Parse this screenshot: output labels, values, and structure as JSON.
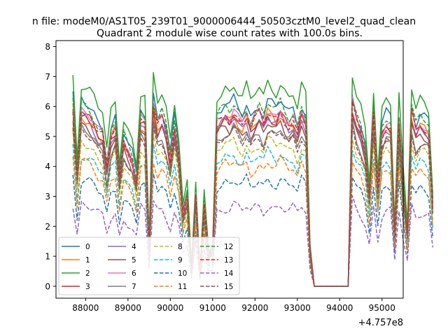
{
  "figure": {
    "suptitle": "n file: modeM0/AS1T05_239T01_9000006444_50503cztM0_level2_quad_clean",
    "offset_label": "+4.757e8"
  },
  "chart_data": {
    "type": "line",
    "title": "Quadrant 2 module wise count rates with 100.0s bins.",
    "xlabel": "",
    "ylabel": "",
    "xlim": [
      87300,
      95500
    ],
    "ylim": [
      -0.4,
      8.2
    ],
    "x_ticks": [
      88000,
      89000,
      90000,
      91000,
      92000,
      93000,
      94000,
      95000
    ],
    "x_tick_labels": [
      "88000",
      "89000",
      "90000",
      "91000",
      "92000",
      "93000",
      "94000",
      "95000"
    ],
    "y_ticks": [
      0,
      1,
      2,
      3,
      4,
      5,
      6,
      7,
      8
    ],
    "y_tick_labels": [
      "0",
      "1",
      "2",
      "3",
      "4",
      "5",
      "6",
      "7",
      "8"
    ],
    "grid": false,
    "legend_placement": "lower-left",
    "x_start": 87700,
    "x_step": 100,
    "y_noise_amplitude": 0.25,
    "template_profile": [
      1.0,
      0.62,
      0.97,
      0.95,
      0.93,
      0.9,
      0.85,
      0.83,
      0.65,
      0.83,
      0.88,
      0.6,
      0.8,
      0.75,
      0.7,
      0.58,
      0.92,
      0.9,
      0.22,
      1.0,
      0.88,
      0.92,
      0.85,
      0.7,
      0.88,
      0.72,
      0.4,
      0.5,
      0.1,
      0.5,
      0.08,
      0.45,
      0.18,
      0.2,
      0.9,
      0.92,
      0.95,
      0.93,
      0.97,
      0.93,
      0.9,
      0.95,
      0.88,
      0.92,
      0.95,
      0.9,
      0.97,
      0.95,
      0.93,
      0.97,
      0.93,
      0.9,
      0.92,
      0.85,
      0.95,
      0.9,
      0.2,
      0.0,
      0.0,
      0.0,
      0.0,
      0.0,
      0.0,
      0.0,
      0.0,
      0.0,
      1.0,
      0.9,
      0.85,
      0.75,
      0.5,
      0.95,
      0.55,
      0.85,
      0.9,
      0.88,
      0.3,
      0.9,
      0.55,
      0.3,
      0.95,
      0.85,
      0.9,
      0.88,
      0.85,
      0.45
    ],
    "series": [
      {
        "name": "0",
        "color": "#1f77b4",
        "dash": "solid",
        "level": 6.4,
        "phase": 0.3
      },
      {
        "name": "1",
        "color": "#ff7f0e",
        "dash": "solid",
        "level": 5.9,
        "phase": 1.1
      },
      {
        "name": "2",
        "color": "#2ca02c",
        "dash": "solid",
        "level": 7.0,
        "phase": 2.0
      },
      {
        "name": "3",
        "color": "#d62728",
        "dash": "solid",
        "level": 5.9,
        "phase": 2.7
      },
      {
        "name": "4",
        "color": "#9467bd",
        "dash": "solid",
        "level": 5.8,
        "phase": 3.5
      },
      {
        "name": "5",
        "color": "#8c564b",
        "dash": "solid",
        "level": 5.6,
        "phase": 4.2
      },
      {
        "name": "6",
        "color": "#e377c2",
        "dash": "solid",
        "level": 6.1,
        "phase": 5.0
      },
      {
        "name": "7",
        "color": "#7f7f7f",
        "dash": "solid",
        "level": 5.4,
        "phase": 5.8
      },
      {
        "name": "8",
        "color": "#bcbd22",
        "dash": "dashed",
        "level": 5.0,
        "phase": 0.7
      },
      {
        "name": "9",
        "color": "#17becf",
        "dash": "dashed",
        "level": 4.6,
        "phase": 1.5
      },
      {
        "name": "10",
        "color": "#1f77b4",
        "dash": "dashed",
        "level": 3.7,
        "phase": 2.3
      },
      {
        "name": "11",
        "color": "#ff7f0e",
        "dash": "dashed",
        "level": 4.3,
        "phase": 3.1
      },
      {
        "name": "12",
        "color": "#2ca02c",
        "dash": "dashed",
        "level": 6.3,
        "phase": 3.9
      },
      {
        "name": "13",
        "color": "#d62728",
        "dash": "dashed",
        "level": 6.0,
        "phase": 4.6
      },
      {
        "name": "14",
        "color": "#9467bd",
        "dash": "dashed",
        "level": 2.8,
        "phase": 5.4
      },
      {
        "name": "15",
        "color": "#8c564b",
        "dash": "dashed",
        "level": 5.3,
        "phase": 6.1
      }
    ]
  }
}
